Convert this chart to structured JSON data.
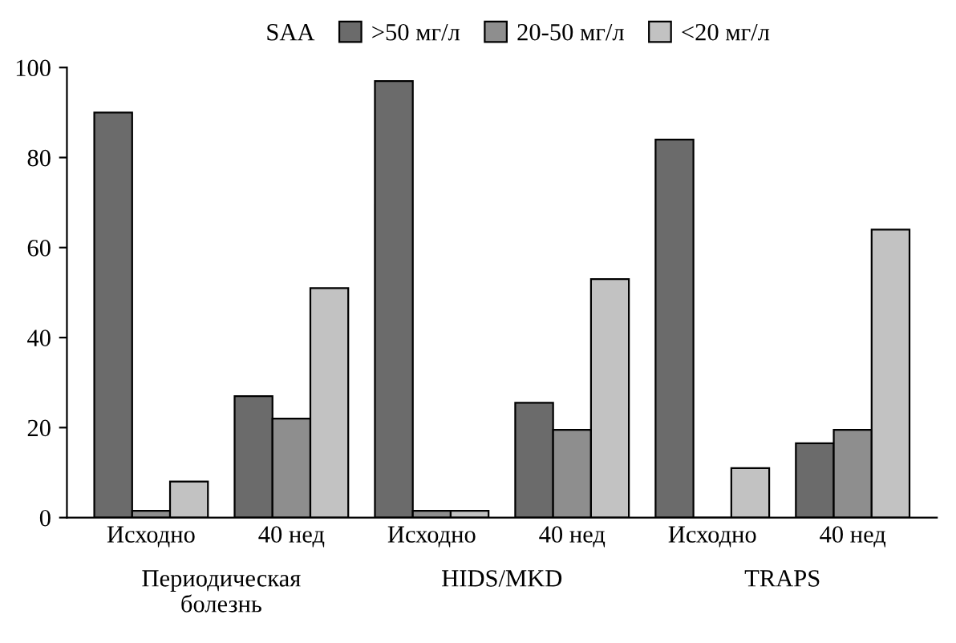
{
  "chart_data": {
    "type": "bar",
    "categories": [
      "Исходно",
      "40 нед",
      "Исходно",
      "40 нед",
      "Исходно",
      "40 нед"
    ],
    "series": [
      {
        "name": ">50 мг/л",
        "color": "#6b6b6b",
        "values": [
          90,
          27,
          97,
          25.5,
          84,
          16.5
        ]
      },
      {
        "name": "20-50 мг/л",
        "color": "#8e8e8e",
        "values": [
          1.5,
          22,
          1.5,
          19.5,
          0,
          19.5
        ]
      },
      {
        "name": "<20 мг/л",
        "color": "#c2c2c2",
        "values": [
          8,
          51,
          1.5,
          53,
          11,
          64
        ]
      }
    ],
    "legend_title": "SAA",
    "legend": "top",
    "annotations": [
      "Периодическая\nболезнь",
      "HIDS/MKD",
      "TRAPS"
    ],
    "ylim": [
      0,
      100
    ],
    "yticks": [
      0,
      20,
      40,
      60,
      80,
      100
    ],
    "grid": false
  }
}
